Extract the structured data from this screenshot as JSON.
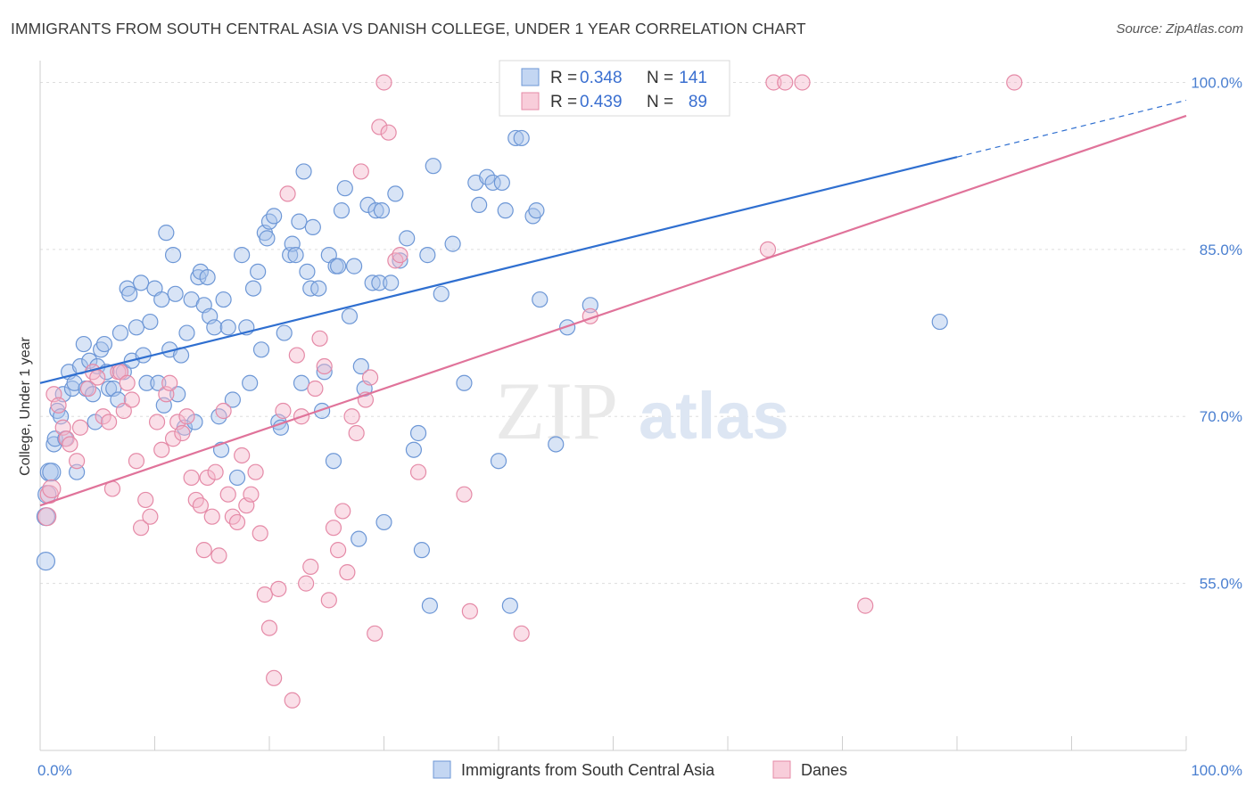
{
  "title": "IMMIGRANTS FROM SOUTH CENTRAL ASIA VS DANISH COLLEGE, UNDER 1 YEAR CORRELATION CHART",
  "source": "Source: ZipAtlas.com",
  "watermark": {
    "zip": "ZIP",
    "atlas": "atlas"
  },
  "colors": {
    "blue_fill": "#a9c4ec",
    "blue_stroke": "#6d97d6",
    "blue_line": "#2f6fd0",
    "pink_fill": "#f5b8cb",
    "pink_stroke": "#e58aa7",
    "pink_line": "#e0739a",
    "grid": "#dddddd",
    "axis_text": "#4a7fd0"
  },
  "legend": {
    "r_label": "R =",
    "n_label": "N =",
    "rows": [
      {
        "series": "blue",
        "r": "0.348",
        "n": "141"
      },
      {
        "series": "pink",
        "r": "0.439",
        "n": "89"
      }
    ]
  },
  "chart_data": {
    "type": "scatter",
    "title": "IMMIGRANTS FROM SOUTH CENTRAL ASIA VS DANISH COLLEGE, UNDER 1 YEAR CORRELATION CHART",
    "xlabel": "",
    "ylabel": "College, Under 1 year",
    "xlim": [
      0,
      100
    ],
    "ylim": [
      40,
      101
    ],
    "x_tick_labels": [
      {
        "value": 0,
        "label": "0.0%"
      },
      {
        "value": 100,
        "label": "100.0%"
      }
    ],
    "y_tick_labels": [
      {
        "value": 55,
        "label": "55.0%"
      },
      {
        "value": 70,
        "label": "70.0%"
      },
      {
        "value": 85,
        "label": "85.0%"
      },
      {
        "value": 100,
        "label": "100.0%"
      }
    ],
    "y_grid": [
      55,
      70,
      85,
      100
    ],
    "x_minor_ticks": [
      10,
      20,
      30,
      40,
      50,
      60,
      70,
      80,
      90
    ],
    "legend_position": "top-center",
    "series": [
      {
        "name": "Immigrants from South Central Asia",
        "color": "blue",
        "trend": {
          "x0": 0,
          "y0": 73.0,
          "x1": 80,
          "y1": 93.3,
          "dashed_to_x": 100,
          "dashed_to_y": 98.4
        },
        "points": [
          [
            0.5,
            57
          ],
          [
            0.5,
            61
          ],
          [
            0.6,
            63
          ],
          [
            0.8,
            65
          ],
          [
            1,
            65
          ],
          [
            1.2,
            67.5
          ],
          [
            1.3,
            68
          ],
          [
            1.5,
            70.5
          ],
          [
            1.8,
            70
          ],
          [
            2,
            72
          ],
          [
            2.2,
            68
          ],
          [
            2.5,
            74
          ],
          [
            2.8,
            72.5
          ],
          [
            3,
            73
          ],
          [
            3.2,
            65
          ],
          [
            3.5,
            74.5
          ],
          [
            3.8,
            76.5
          ],
          [
            4,
            72.5
          ],
          [
            4.3,
            75
          ],
          [
            4.6,
            72
          ],
          [
            4.8,
            69.5
          ],
          [
            5,
            74.5
          ],
          [
            5.3,
            76
          ],
          [
            5.6,
            76.5
          ],
          [
            5.8,
            74
          ],
          [
            6,
            72.5
          ],
          [
            6.4,
            72.5
          ],
          [
            6.8,
            71.5
          ],
          [
            7,
            77.5
          ],
          [
            7.3,
            74
          ],
          [
            7.6,
            81.5
          ],
          [
            7.8,
            81
          ],
          [
            8,
            75
          ],
          [
            8.4,
            78
          ],
          [
            8.8,
            82
          ],
          [
            9,
            75.5
          ],
          [
            9.3,
            73
          ],
          [
            9.6,
            78.5
          ],
          [
            10,
            81.5
          ],
          [
            10.3,
            73
          ],
          [
            10.6,
            80.5
          ],
          [
            10.8,
            71
          ],
          [
            11,
            86.5
          ],
          [
            11.3,
            76
          ],
          [
            11.6,
            84.5
          ],
          [
            11.8,
            81
          ],
          [
            12,
            72
          ],
          [
            12.3,
            75.5
          ],
          [
            12.6,
            69
          ],
          [
            12.8,
            77.5
          ],
          [
            13.2,
            80.5
          ],
          [
            13.5,
            69.5
          ],
          [
            13.8,
            82.5
          ],
          [
            14,
            83
          ],
          [
            14.3,
            80
          ],
          [
            14.6,
            82.5
          ],
          [
            14.8,
            79
          ],
          [
            15.2,
            78
          ],
          [
            15.6,
            70
          ],
          [
            15.8,
            67
          ],
          [
            16,
            80.5
          ],
          [
            16.4,
            78
          ],
          [
            16.8,
            71.5
          ],
          [
            17.2,
            64.5
          ],
          [
            17.6,
            84.5
          ],
          [
            18,
            78
          ],
          [
            18.3,
            73
          ],
          [
            18.6,
            81.5
          ],
          [
            19,
            83
          ],
          [
            19.3,
            76
          ],
          [
            19.6,
            86.5
          ],
          [
            19.8,
            86
          ],
          [
            20,
            87.5
          ],
          [
            20.4,
            88
          ],
          [
            20.8,
            69.5
          ],
          [
            21,
            69
          ],
          [
            21.3,
            77.5
          ],
          [
            21.8,
            84.5
          ],
          [
            22,
            85.5
          ],
          [
            22.3,
            84.5
          ],
          [
            22.6,
            87.5
          ],
          [
            22.8,
            73
          ],
          [
            23,
            92
          ],
          [
            23.3,
            83
          ],
          [
            23.6,
            81.5
          ],
          [
            23.8,
            87
          ],
          [
            24.3,
            81.5
          ],
          [
            24.6,
            70.5
          ],
          [
            24.8,
            74
          ],
          [
            25.2,
            84.5
          ],
          [
            25.6,
            66
          ],
          [
            25.8,
            83.5
          ],
          [
            26,
            83.5
          ],
          [
            26.3,
            88.5
          ],
          [
            26.6,
            90.5
          ],
          [
            27,
            79
          ],
          [
            27.4,
            83.5
          ],
          [
            27.8,
            59
          ],
          [
            28,
            74.5
          ],
          [
            28.3,
            72.5
          ],
          [
            28.6,
            89
          ],
          [
            29,
            82
          ],
          [
            29.3,
            88.5
          ],
          [
            29.6,
            82
          ],
          [
            29.8,
            88.5
          ],
          [
            30,
            60.5
          ],
          [
            30.6,
            82
          ],
          [
            31,
            90
          ],
          [
            31.4,
            84
          ],
          [
            32,
            86
          ],
          [
            32.6,
            67
          ],
          [
            33,
            68.5
          ],
          [
            33.3,
            58
          ],
          [
            33.8,
            84.5
          ],
          [
            34,
            53
          ],
          [
            34.3,
            92.5
          ],
          [
            35,
            81
          ],
          [
            36,
            85.5
          ],
          [
            37,
            73
          ],
          [
            38,
            91
          ],
          [
            38.3,
            89
          ],
          [
            39,
            91.5
          ],
          [
            39.5,
            91
          ],
          [
            40,
            66
          ],
          [
            40.3,
            91
          ],
          [
            40.6,
            88.5
          ],
          [
            41,
            53
          ],
          [
            41.5,
            95
          ],
          [
            42,
            95
          ],
          [
            43,
            88
          ],
          [
            43.3,
            88.5
          ],
          [
            43.6,
            80.5
          ],
          [
            45,
            67.5
          ],
          [
            46,
            78
          ],
          [
            48,
            80
          ],
          [
            78.5,
            78.5
          ]
        ]
      },
      {
        "name": "Danes",
        "color": "pink",
        "trend": {
          "x0": 0,
          "y0": 62.0,
          "x1": 100,
          "y1": 97.0
        },
        "points": [
          [
            0.6,
            61
          ],
          [
            0.8,
            63
          ],
          [
            1,
            63.5
          ],
          [
            1.2,
            72
          ],
          [
            1.6,
            71
          ],
          [
            2,
            69
          ],
          [
            2.3,
            68
          ],
          [
            2.6,
            67.5
          ],
          [
            3.2,
            66
          ],
          [
            3.5,
            69
          ],
          [
            4.2,
            72.5
          ],
          [
            4.6,
            74
          ],
          [
            5,
            73.5
          ],
          [
            5.5,
            70
          ],
          [
            6,
            69.5
          ],
          [
            6.3,
            63.5
          ],
          [
            6.8,
            74
          ],
          [
            7,
            74
          ],
          [
            7.3,
            70.5
          ],
          [
            7.6,
            73
          ],
          [
            8,
            71.5
          ],
          [
            8.4,
            66
          ],
          [
            8.8,
            60
          ],
          [
            9.2,
            62.5
          ],
          [
            9.6,
            61
          ],
          [
            10.2,
            69.5
          ],
          [
            10.6,
            67
          ],
          [
            11,
            72
          ],
          [
            11.3,
            73
          ],
          [
            11.6,
            68
          ],
          [
            12,
            69.5
          ],
          [
            12.4,
            68.5
          ],
          [
            12.8,
            70
          ],
          [
            13.2,
            64.5
          ],
          [
            13.6,
            62.5
          ],
          [
            14,
            62
          ],
          [
            14.3,
            58
          ],
          [
            14.6,
            64.5
          ],
          [
            15,
            61
          ],
          [
            15.3,
            65
          ],
          [
            15.6,
            57.5
          ],
          [
            16,
            70.5
          ],
          [
            16.4,
            63
          ],
          [
            16.8,
            61
          ],
          [
            17.2,
            60.5
          ],
          [
            17.6,
            66.5
          ],
          [
            18,
            62
          ],
          [
            18.4,
            63
          ],
          [
            18.8,
            65
          ],
          [
            19.2,
            59.5
          ],
          [
            19.6,
            54
          ],
          [
            20,
            51
          ],
          [
            20.4,
            46.5
          ],
          [
            20.8,
            54.5
          ],
          [
            21.2,
            70.5
          ],
          [
            21.6,
            90
          ],
          [
            22,
            44.5
          ],
          [
            22.4,
            75.5
          ],
          [
            22.8,
            70
          ],
          [
            23.2,
            55
          ],
          [
            23.6,
            56.5
          ],
          [
            24,
            72.5
          ],
          [
            24.4,
            77
          ],
          [
            24.8,
            74.5
          ],
          [
            25.2,
            53.5
          ],
          [
            25.6,
            60
          ],
          [
            26,
            58
          ],
          [
            26.4,
            61.5
          ],
          [
            26.8,
            56
          ],
          [
            27.2,
            70
          ],
          [
            27.6,
            68.5
          ],
          [
            28,
            92
          ],
          [
            28.4,
            71.5
          ],
          [
            28.8,
            73.5
          ],
          [
            29.2,
            50.5
          ],
          [
            29.6,
            96
          ],
          [
            30,
            100
          ],
          [
            30.4,
            95.5
          ],
          [
            31,
            84
          ],
          [
            31.4,
            84.5
          ],
          [
            33,
            65
          ],
          [
            37,
            63
          ],
          [
            37.5,
            52.5
          ],
          [
            42,
            50.5
          ],
          [
            48,
            79
          ],
          [
            63.5,
            85
          ],
          [
            64,
            100
          ],
          [
            65,
            100
          ],
          [
            66.5,
            100
          ],
          [
            72,
            53
          ],
          [
            85,
            100
          ]
        ]
      }
    ]
  },
  "bottom_legend": [
    {
      "series": "blue",
      "label": "Immigrants from South Central Asia"
    },
    {
      "series": "pink",
      "label": "Danes"
    }
  ]
}
